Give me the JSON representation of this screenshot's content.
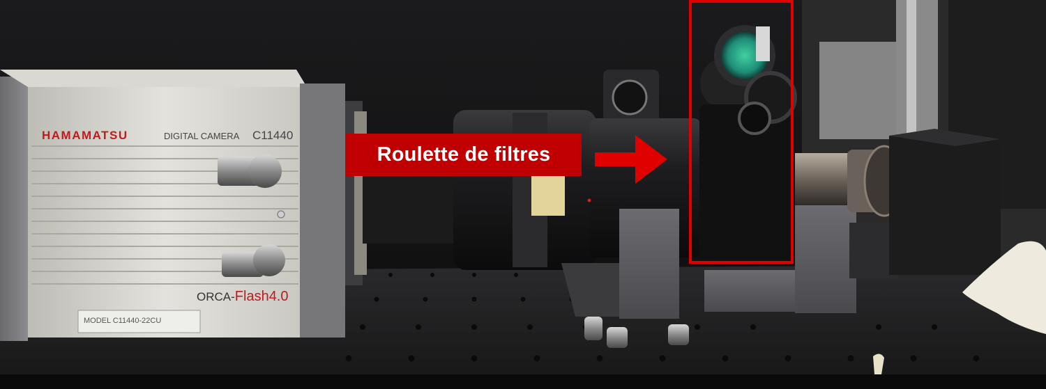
{
  "callout": {
    "label": "Roulette de filtres",
    "box_color": "#c00000",
    "arrow_color": "#e00000",
    "highlight_color": "#e00000"
  },
  "camera": {
    "brand": "HAMAMATSU",
    "product": "DIGITAL CAMERA",
    "model_code": "C11440",
    "series_prefix": "ORCA-",
    "series_name": "Flash4.0",
    "model_plate": "MODEL C11440-22CU"
  }
}
